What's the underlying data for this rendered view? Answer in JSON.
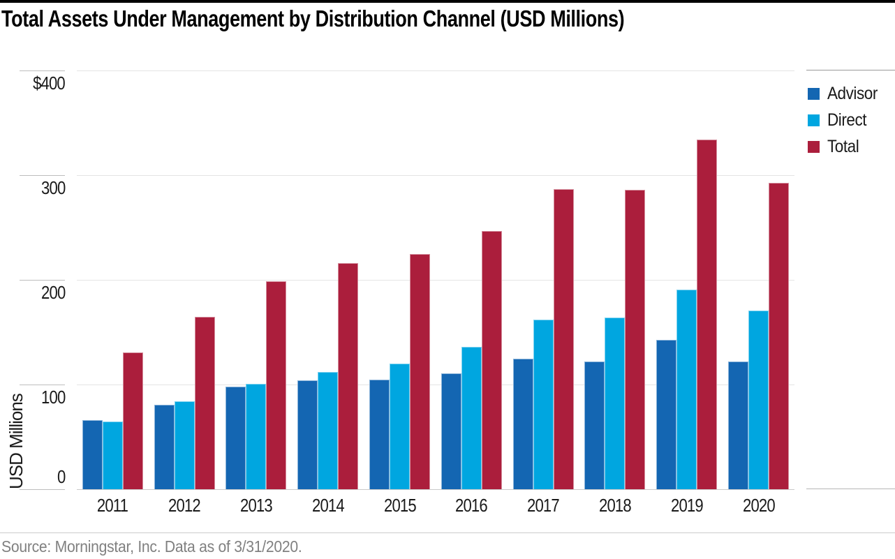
{
  "title": "Total Assets Under Management by Distribution Channel (USD Millions)",
  "source_note": "Source: Morningstar, Inc. Data as of 3/31/2020.",
  "y_axis": {
    "label": "USD Millions",
    "ticks": [
      "$400",
      "300",
      "200",
      "100",
      "0"
    ],
    "tick_values": [
      400,
      300,
      200,
      100,
      0
    ]
  },
  "legend": [
    {
      "label": "Advisor",
      "color": "#1466b2"
    },
    {
      "label": "Direct",
      "color": "#00a6e0"
    },
    {
      "label": "Total",
      "color": "#ab1e3c"
    }
  ],
  "chart_data": {
    "type": "bar",
    "title": "Total Assets Under Management by Distribution Channel (USD Millions)",
    "categories": [
      "2011",
      "2012",
      "2013",
      "2014",
      "2015",
      "2016",
      "2017",
      "2018",
      "2019",
      "2020"
    ],
    "series": [
      {
        "name": "Advisor",
        "color": "#1466b2",
        "values": [
          66,
          81,
          98,
          104,
          105,
          111,
          125,
          122,
          143,
          122
        ]
      },
      {
        "name": "Direct",
        "color": "#00a6e0",
        "values": [
          65,
          84,
          101,
          112,
          120,
          136,
          162,
          164,
          191,
          171
        ]
      },
      {
        "name": "Total",
        "color": "#ab1e3c",
        "values": [
          131,
          165,
          199,
          216,
          225,
          247,
          287,
          286,
          334,
          293
        ]
      }
    ],
    "xlabel": "",
    "ylabel": "USD Millions",
    "ylim": [
      0,
      400
    ],
    "grid": true,
    "legend_position": "right"
  }
}
